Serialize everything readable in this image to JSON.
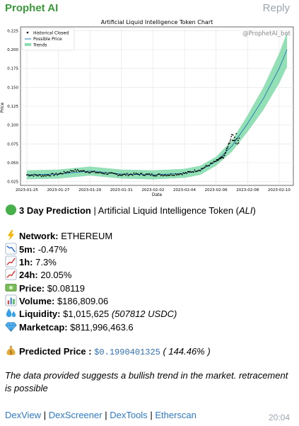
{
  "header": {
    "sender": "Prophet AI",
    "reply": "Reply"
  },
  "chart_data": {
    "type": "line",
    "title": "Artificial Liquid Intelligence Token Chart",
    "watermark": "@ProphetAI_bot",
    "xlabel": "Date",
    "ylabel": "Price",
    "ylim": [
      0.02,
      0.23
    ],
    "yticks": [
      "0.025",
      "0.050",
      "0.075",
      "0.100",
      "0.125",
      "0.150",
      "0.175",
      "0.200",
      "0.225"
    ],
    "xticks": [
      "2023-01-25",
      "2023-01-27",
      "2023-01-29",
      "2023-01-31",
      "2023-02-02",
      "2023-02-04",
      "2023-02-06",
      "2023-02-08",
      "2023-02-10"
    ],
    "grid": true,
    "legend_position": "top-left",
    "legend": [
      "Historical Closed",
      "Possible Price",
      "Trends"
    ],
    "colors": {
      "historical": "#000000",
      "possible": "#1f77b4",
      "trend": "#6fd49e"
    },
    "historical_x": [
      "2023-01-25",
      "2023-01-26",
      "2023-01-27",
      "2023-01-28",
      "2023-01-29",
      "2023-01-30",
      "2023-01-31",
      "2023-02-01",
      "2023-02-02",
      "2023-02-03",
      "2023-02-04",
      "2023-02-05",
      "2023-02-06",
      "2023-02-06T12",
      "2023-02-07",
      "2023-02-07T12"
    ],
    "historical_y": [
      0.034,
      0.033,
      0.035,
      0.04,
      0.038,
      0.036,
      0.034,
      0.035,
      0.034,
      0.034,
      0.036,
      0.041,
      0.052,
      0.058,
      0.085,
      0.08
    ],
    "possible_x": [
      "2023-01-25",
      "2023-01-27",
      "2023-01-29",
      "2023-01-31",
      "2023-02-02",
      "2023-02-04",
      "2023-02-05",
      "2023-02-06",
      "2023-02-07",
      "2023-02-08",
      "2023-02-09",
      "2023-02-10",
      "2023-02-10T12"
    ],
    "possible_y": [
      0.034,
      0.035,
      0.039,
      0.035,
      0.034,
      0.036,
      0.04,
      0.052,
      0.072,
      0.102,
      0.135,
      0.175,
      0.2
    ]
  },
  "message": {
    "prediction_label": "3 Day Prediction",
    "token_name": "Artificial Liquid Intelligence Token (",
    "token_symbol": "ALI",
    "token_close": ")",
    "sep": "|",
    "network_label": "Network:",
    "network_value": "ETHEREUM",
    "m5_label": "5m:",
    "m5_value": "-0.47%",
    "h1_label": "1h:",
    "h1_value": "7.3%",
    "h24_label": "24h:",
    "h24_value": "20.05%",
    "price_label": "Price:",
    "price_value": "$0.08119",
    "volume_label": "Volume:",
    "volume_value": "$186,809.06",
    "liquidity_label": "Liquidity:",
    "liquidity_value": "$1,015,625",
    "liquidity_paren": "(507812 USDC)",
    "marketcap_label": "Marketcap:",
    "marketcap_value": "$811,996,463.6",
    "predicted_label": "Predicted Price :",
    "predicted_value": "$0.1990401325",
    "predicted_pct": "( 144.46% )",
    "note_line1": "The data provided suggests a bullish trend in the market. retracement",
    "note_line2": "is possible",
    "links": [
      "DexView",
      "DexScreener",
      "DexTools",
      "Etherscan"
    ],
    "time": "20:04"
  }
}
